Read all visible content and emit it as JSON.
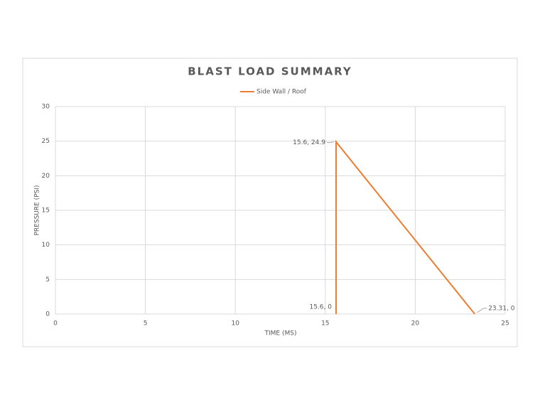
{
  "chart_data": {
    "type": "line",
    "title": "BLAST LOAD SUMMARY",
    "x_label": "TIME (MS)",
    "y_label": "PRESSURE (PSI)",
    "x": [
      15.6,
      15.6,
      23.31
    ],
    "series": [
      {
        "name": "Side Wall / Roof",
        "color": "#ed7d31",
        "values": [
          0,
          24.9,
          0
        ],
        "value_labels": [
          "15.6, 0",
          "15.6, 24.9",
          "23.31, 0"
        ]
      }
    ],
    "xlim": [
      0,
      25
    ],
    "xticks": [
      0,
      5,
      10,
      15,
      20,
      25
    ],
    "ylim": [
      0,
      30
    ],
    "yticks": [
      0,
      5,
      10,
      15,
      20,
      25,
      30
    ],
    "grid": true,
    "legend": "top"
  }
}
